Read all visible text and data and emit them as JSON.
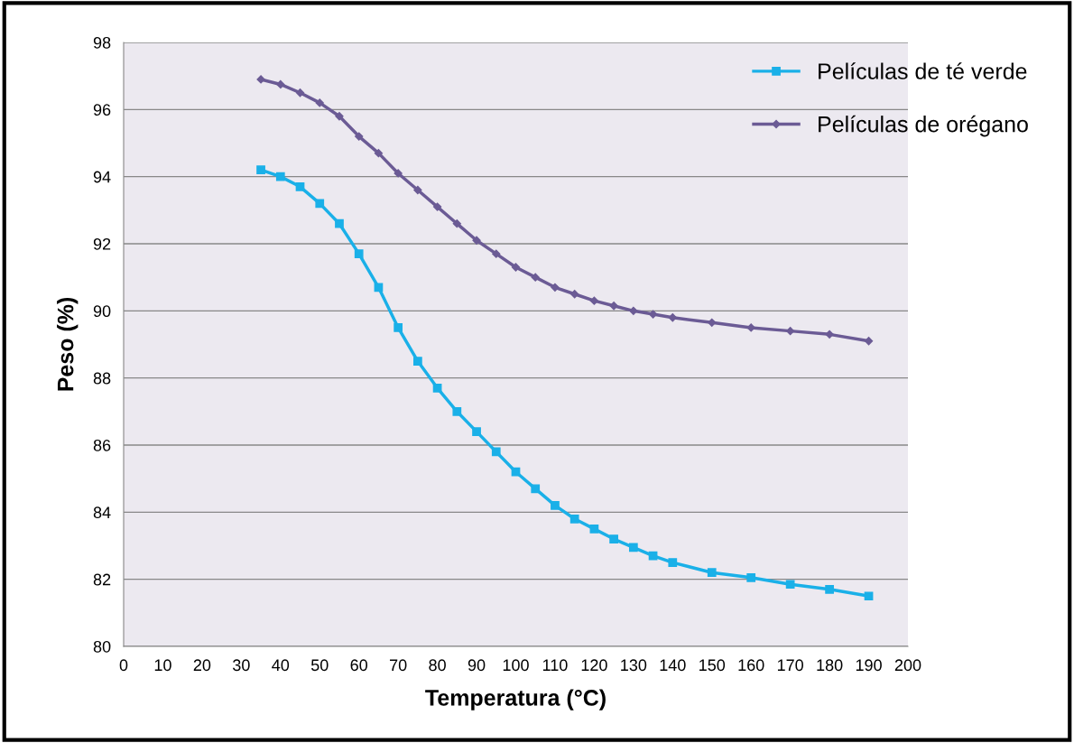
{
  "chart_data": {
    "type": "line",
    "xlabel": "Temperatura (°C)",
    "ylabel": "Peso (%)",
    "x": [
      35,
      40,
      45,
      50,
      55,
      60,
      65,
      70,
      75,
      80,
      85,
      90,
      95,
      100,
      105,
      110,
      115,
      120,
      125,
      130,
      135,
      140,
      150,
      160,
      170,
      180,
      190
    ],
    "series": [
      {
        "name": "Películas de té verde",
        "color": "#1ab0e8",
        "marker": "square",
        "values": [
          94.2,
          94.0,
          93.7,
          93.2,
          92.6,
          91.7,
          90.7,
          89.5,
          88.5,
          87.7,
          87.0,
          86.4,
          85.8,
          85.2,
          84.7,
          84.2,
          83.8,
          83.5,
          83.2,
          82.95,
          82.7,
          82.5,
          82.2,
          82.05,
          81.85,
          81.7,
          81.5
        ]
      },
      {
        "name": "Películas de orégano",
        "color": "#6b5b95",
        "marker": "diamond",
        "values": [
          96.9,
          96.75,
          96.5,
          96.2,
          95.8,
          95.2,
          94.7,
          94.1,
          93.6,
          93.1,
          92.6,
          92.1,
          91.7,
          91.3,
          91.0,
          90.7,
          90.5,
          90.3,
          90.15,
          90.0,
          89.9,
          89.8,
          89.65,
          89.5,
          89.4,
          89.3,
          89.1
        ]
      }
    ],
    "xlim": [
      0,
      200
    ],
    "xticks": [
      0,
      10,
      20,
      30,
      40,
      50,
      60,
      70,
      80,
      90,
      100,
      110,
      120,
      130,
      140,
      150,
      160,
      170,
      180,
      190,
      200
    ],
    "ylim": [
      80,
      98
    ],
    "yticks": [
      80,
      82,
      84,
      86,
      88,
      90,
      92,
      94,
      96,
      98
    ],
    "grid": "y",
    "legend": "top right"
  }
}
